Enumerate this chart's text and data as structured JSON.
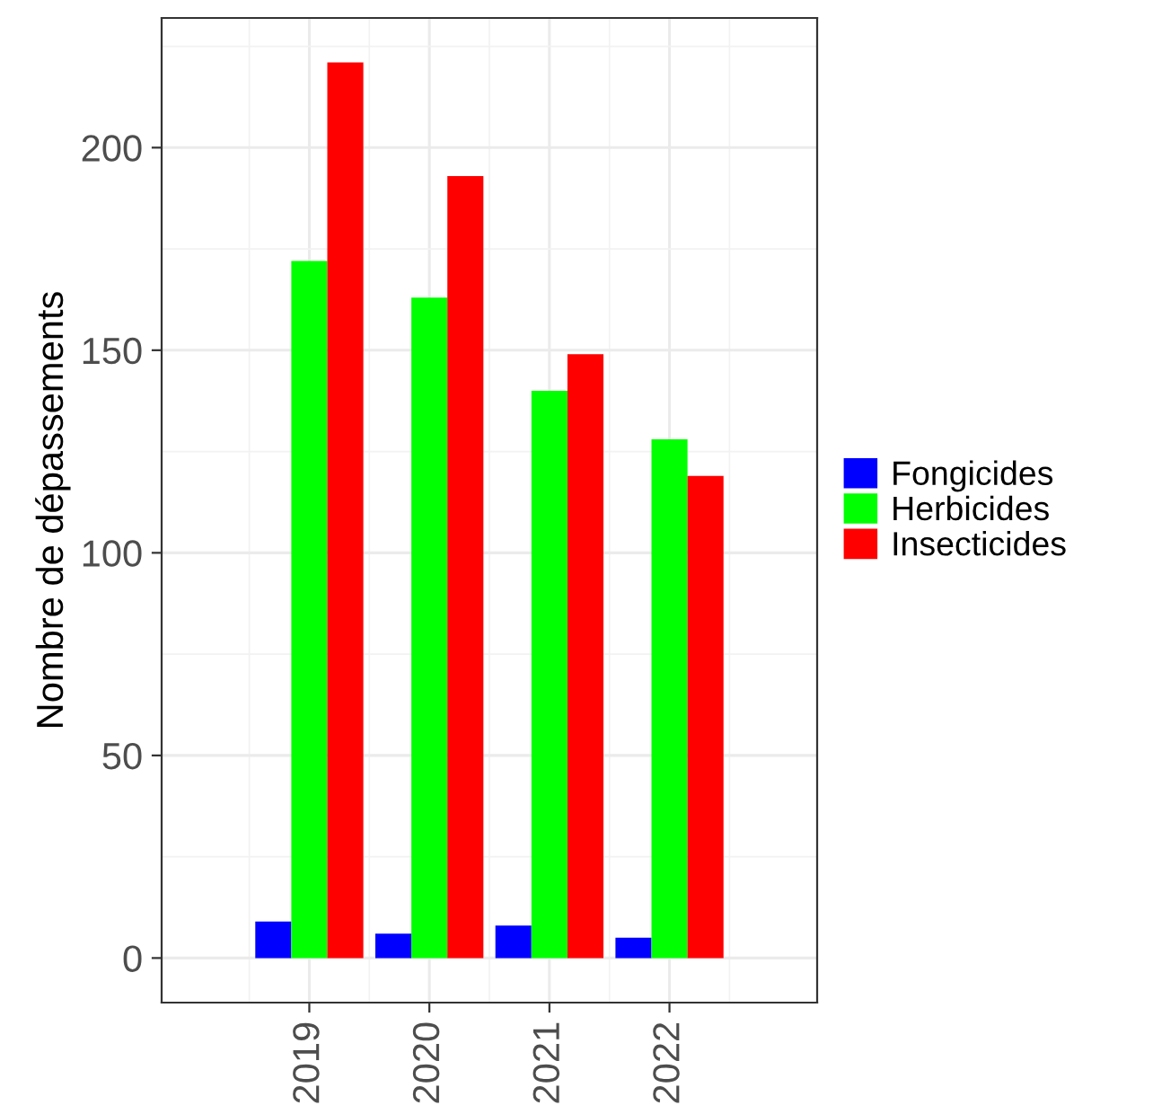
{
  "chart_data": {
    "type": "bar",
    "ylabel": "Nombre de dépassements",
    "x": [
      2019,
      2020,
      2021,
      2022
    ],
    "series": [
      {
        "name": "Fongicides",
        "color": "#0000ff",
        "values": [
          9,
          6,
          8,
          5
        ]
      },
      {
        "name": "Herbicides",
        "color": "#00ff00",
        "values": [
          172,
          163,
          140,
          128
        ]
      },
      {
        "name": "Insecticides",
        "color": "#ff0000",
        "values": [
          221,
          193,
          149,
          119
        ]
      }
    ],
    "xlim": [
      2017.77,
      2023.23
    ],
    "xticks": [
      {
        "value": 2019,
        "label": "2019"
      },
      {
        "value": 2020,
        "label": "2020"
      },
      {
        "value": 2021,
        "label": "2021"
      },
      {
        "value": 2022,
        "label": "2022"
      }
    ],
    "ylim": [
      -11,
      232
    ],
    "yticks": [
      0,
      50,
      100,
      150,
      200
    ],
    "grid": true,
    "legend": "right"
  }
}
